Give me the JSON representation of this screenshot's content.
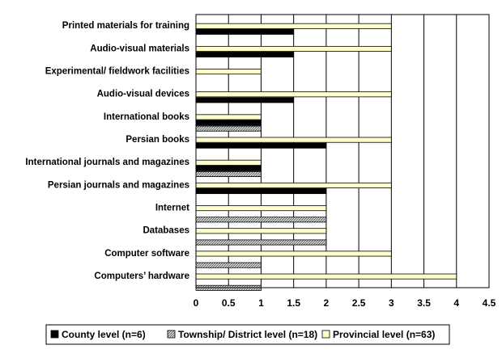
{
  "chart_data": {
    "type": "bar",
    "orientation": "horizontal",
    "title": "",
    "xlabel": "",
    "ylabel": "",
    "xlim": [
      0,
      4.5
    ],
    "x_ticks": [
      "0",
      "0.5",
      "1",
      "1.5",
      "2",
      "2.5",
      "3",
      "3.5",
      "4",
      "4.5"
    ],
    "grid": "vertical",
    "legend_position": "bottom",
    "categories": [
      "Printed materials for training",
      "Audio-visual materials",
      "Experimental/ fieldwork facilities",
      "Audio-visual devices",
      "International books",
      "Persian books",
      "International journals and magazines",
      "Persian journals and magazines",
      "Internet",
      "Databases",
      "Computer software",
      "Computers’ hardware"
    ],
    "series": [
      {
        "name": "County level (n=6)",
        "color": "#000000",
        "pattern": "solid",
        "values": [
          1.5,
          1.5,
          null,
          1.5,
          1,
          2,
          1,
          2,
          null,
          null,
          null,
          null
        ]
      },
      {
        "name": "Township/ District level (n=18)",
        "color": "#b0b0b0",
        "pattern": "hatched",
        "values": [
          null,
          null,
          null,
          null,
          1,
          null,
          1,
          null,
          2,
          2,
          1,
          1
        ]
      },
      {
        "name": "Provincial level (n=63)",
        "color": "#ffffcc",
        "pattern": "solid",
        "values": [
          3,
          3,
          1,
          3,
          1,
          3,
          1,
          3,
          2,
          2,
          3,
          4
        ]
      }
    ]
  }
}
